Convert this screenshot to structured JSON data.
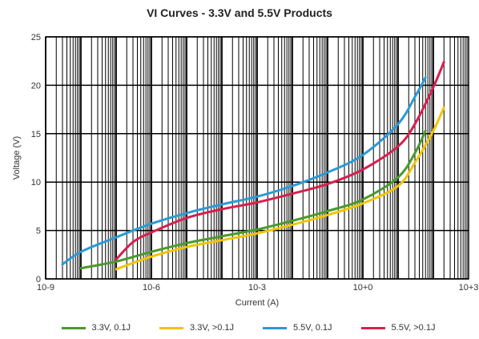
{
  "chart_data": {
    "type": "line",
    "title": "VI Curves - 3.3V and 5.5V Products",
    "xlabel": "Current (A)",
    "ylabel": "Voltage (V)",
    "x_scale": "log",
    "xlim": [
      1e-09,
      1000
    ],
    "ylim": [
      0,
      25
    ],
    "x_ticks": [
      {
        "value": 1e-09,
        "label": "10-9"
      },
      {
        "value": 1e-06,
        "label": "10-6"
      },
      {
        "value": 0.001,
        "label": "10-3"
      },
      {
        "value": 1,
        "label": "10+0"
      },
      {
        "value": 1000,
        "label": "10+3"
      }
    ],
    "y_ticks": [
      0,
      5,
      10,
      15,
      20,
      25
    ],
    "grid": true,
    "legend_position": "bottom",
    "series": [
      {
        "name": "3.3V, 0.1J",
        "color": "#4a9a2c",
        "x": [
          1e-08,
          1e-07,
          1e-06,
          1e-05,
          0.0001,
          0.001,
          0.01,
          0.1,
          1,
          10,
          30,
          60
        ],
        "y": [
          1.1,
          1.8,
          2.8,
          3.7,
          4.4,
          5.1,
          6.0,
          7.0,
          8.2,
          10.5,
          13.0,
          15.3
        ]
      },
      {
        "name": "3.3V, >0.1J",
        "color": "#f2c400",
        "x": [
          1e-07,
          1e-06,
          1e-05,
          0.0001,
          0.001,
          0.01,
          0.1,
          1,
          10,
          30,
          100,
          200
        ],
        "y": [
          1.0,
          2.3,
          3.3,
          4.0,
          4.7,
          5.6,
          6.6,
          7.8,
          9.6,
          12.0,
          15.3,
          17.7
        ]
      },
      {
        "name": "5.5V, 0.1J",
        "color": "#2b9ad6",
        "x": [
          3e-09,
          1e-08,
          1e-07,
          1e-06,
          1e-05,
          0.0001,
          0.001,
          0.01,
          0.1,
          1,
          10,
          30,
          60
        ],
        "y": [
          1.5,
          2.8,
          4.3,
          5.7,
          6.8,
          7.7,
          8.5,
          9.6,
          11.0,
          12.8,
          16.0,
          18.8,
          20.8
        ]
      },
      {
        "name": "5.5V, >0.1J",
        "color": "#d6204f",
        "x": [
          1e-07,
          3e-07,
          1e-06,
          1e-05,
          0.0001,
          0.001,
          0.01,
          0.1,
          1,
          10,
          30,
          100,
          200
        ],
        "y": [
          2.0,
          3.8,
          4.8,
          6.3,
          7.2,
          7.9,
          8.8,
          9.8,
          11.3,
          13.7,
          16.0,
          19.8,
          22.4
        ]
      }
    ]
  }
}
